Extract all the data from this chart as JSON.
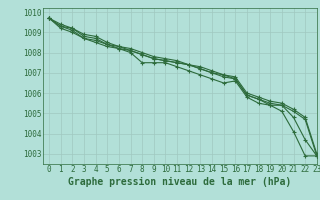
{
  "title": "Graphe pression niveau de la mer (hPa)",
  "background_color": "#b2e0d8",
  "grid_color": "#a0c8c0",
  "line_color": "#2d6b3c",
  "xlim": [
    -0.5,
    23
  ],
  "ylim": [
    1002.5,
    1010.2
  ],
  "yticks": [
    1003,
    1004,
    1005,
    1006,
    1007,
    1008,
    1009,
    1010
  ],
  "xticks": [
    0,
    1,
    2,
    3,
    4,
    5,
    6,
    7,
    8,
    9,
    10,
    11,
    12,
    13,
    14,
    15,
    16,
    17,
    18,
    19,
    20,
    21,
    22,
    23
  ],
  "series": [
    [
      1009.7,
      1009.2,
      1009.0,
      1008.7,
      1008.5,
      1008.3,
      1008.2,
      1008.0,
      1007.5,
      1007.5,
      1007.5,
      1007.3,
      1007.1,
      1006.9,
      1006.7,
      1006.5,
      1006.6,
      1005.8,
      1005.5,
      1005.4,
      1005.1,
      1004.1,
      1002.9,
      1002.9
    ],
    [
      1009.7,
      1009.3,
      1009.1,
      1008.7,
      1008.6,
      1008.4,
      1008.2,
      1008.1,
      1007.9,
      1007.7,
      1007.6,
      1007.5,
      1007.4,
      1007.2,
      1007.0,
      1006.8,
      1006.7,
      1005.9,
      1005.7,
      1005.4,
      1005.4,
      1004.8,
      1003.7,
      1002.9
    ],
    [
      1009.7,
      1009.3,
      1009.2,
      1008.8,
      1008.7,
      1008.4,
      1008.3,
      1008.1,
      1007.9,
      1007.7,
      1007.6,
      1007.5,
      1007.4,
      1007.2,
      1007.0,
      1006.9,
      1006.7,
      1005.9,
      1005.7,
      1005.5,
      1005.4,
      1005.1,
      1004.7,
      1002.9
    ],
    [
      1009.7,
      1009.4,
      1009.2,
      1008.9,
      1008.8,
      1008.5,
      1008.3,
      1008.2,
      1008.0,
      1007.8,
      1007.7,
      1007.6,
      1007.4,
      1007.3,
      1007.1,
      1006.9,
      1006.8,
      1006.0,
      1005.8,
      1005.6,
      1005.5,
      1005.2,
      1004.8,
      1003.0
    ]
  ],
  "ylabel_fontsize": 6,
  "xlabel_fontsize": 6,
  "title_fontsize": 7,
  "tick_fontsize": 5.5
}
